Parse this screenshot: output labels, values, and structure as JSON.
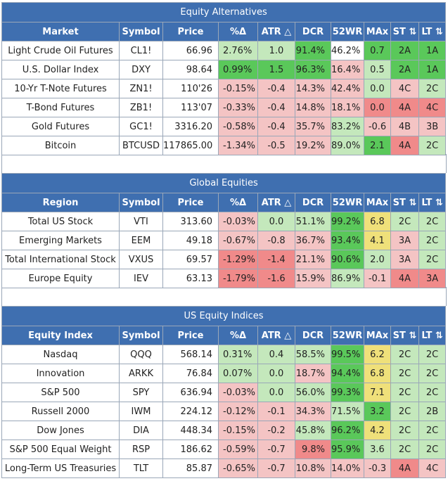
{
  "columns": [
    "Symbol",
    "Price",
    "%Δ",
    "ATR △",
    "DCR",
    "52WR",
    "MAx",
    "ST ⇅",
    "LT ⇅"
  ],
  "sections": [
    {
      "title": "Equity Alternatives",
      "first_col": "Market",
      "rows": [
        {
          "name": "Light Crude Oil Futures",
          "symbol": "CL1!",
          "price": "66.96",
          "pct": "2.76%",
          "atr": "1.0",
          "dcr": "91.4%",
          "wr": "46.2%",
          "max": "0.7",
          "st": "2A",
          "lt": "1A",
          "colors": [
            "lg",
            "lg",
            "dg",
            "w",
            "dg",
            "dg",
            "dg"
          ]
        },
        {
          "name": "U.S. Dollar Index",
          "symbol": "DXY",
          "price": "98.64",
          "pct": "0.99%",
          "atr": "1.5",
          "dcr": "96.3%",
          "wr": "16.4%",
          "max": "0.5",
          "st": "2A",
          "lt": "1A",
          "colors": [
            "dg",
            "dg",
            "dg",
            "lr",
            "lg",
            "dg",
            "dg"
          ]
        },
        {
          "name": "10-Yr T-Note Futures",
          "symbol": "ZN1!",
          "price": "110'26",
          "pct": "-0.15%",
          "atr": "-0.4",
          "dcr": "14.3%",
          "wr": "42.4%",
          "max": "0.0",
          "st": "4C",
          "lt": "2C",
          "colors": [
            "lr",
            "lr",
            "lr",
            "lr",
            "lg",
            "lr",
            "lg"
          ]
        },
        {
          "name": "T-Bond Futures",
          "symbol": "ZB1!",
          "price": "113'07",
          "pct": "-0.33%",
          "atr": "-0.4",
          "dcr": "14.8%",
          "wr": "18.1%",
          "max": "0.0",
          "st": "4A",
          "lt": "4C",
          "colors": [
            "lr",
            "lr",
            "lr",
            "lr",
            "r",
            "r",
            "r"
          ]
        },
        {
          "name": "Gold Futures",
          "symbol": "GC1!",
          "price": "3316.20",
          "pct": "-0.58%",
          "atr": "-0.4",
          "dcr": "35.7%",
          "wr": "83.2%",
          "max": "-0.6",
          "st": "4B",
          "lt": "3B",
          "colors": [
            "lr",
            "lr",
            "lr",
            "lg",
            "lr",
            "lr",
            "lr"
          ]
        },
        {
          "name": "Bitcoin",
          "symbol": "BTCUSD",
          "price": "117865.00",
          "pct": "-1.34%",
          "atr": "-0.5",
          "dcr": "19.2%",
          "wr": "89.0%",
          "max": "2.1",
          "st": "4A",
          "lt": "2C",
          "colors": [
            "lr",
            "lr",
            "lr",
            "lg",
            "dg",
            "r",
            "lg"
          ]
        }
      ]
    },
    {
      "title": "Global Equities",
      "first_col": "Region",
      "rows": [
        {
          "name": "Total US Stock",
          "symbol": "VTI",
          "price": "313.60",
          "pct": "-0.03%",
          "atr": "0.0",
          "dcr": "51.1%",
          "wr": "99.2%",
          "max": "6.8",
          "st": "2C",
          "lt": "2C",
          "colors": [
            "lr",
            "lg",
            "lg",
            "dg",
            "y",
            "lg",
            "lg"
          ]
        },
        {
          "name": "Emerging Markets",
          "symbol": "EEM",
          "price": "49.18",
          "pct": "-0.67%",
          "atr": "-0.8",
          "dcr": "36.7%",
          "wr": "93.4%",
          "max": "4.1",
          "st": "3A",
          "lt": "2C",
          "colors": [
            "lr",
            "lr",
            "lr",
            "dg",
            "y",
            "lr",
            "lg"
          ]
        },
        {
          "name": "Total International Stock",
          "symbol": "VXUS",
          "price": "69.57",
          "pct": "-1.29%",
          "atr": "-1.4",
          "dcr": "21.1%",
          "wr": "90.6%",
          "max": "2.0",
          "st": "3A",
          "lt": "2C",
          "colors": [
            "r",
            "r",
            "lr",
            "dg",
            "lg",
            "lr",
            "lg"
          ]
        },
        {
          "name": "Europe Equity",
          "symbol": "IEV",
          "price": "63.13",
          "pct": "-1.79%",
          "atr": "-1.6",
          "dcr": "15.9%",
          "wr": "86.9%",
          "max": "-0.1",
          "st": "4A",
          "lt": "3A",
          "colors": [
            "r",
            "r",
            "lr",
            "lg",
            "lr",
            "r",
            "r"
          ]
        }
      ]
    },
    {
      "title": "US Equity Indices",
      "first_col": "Equity Index",
      "rows": [
        {
          "name": "Nasdaq",
          "symbol": "QQQ",
          "price": "568.14",
          "pct": "0.31%",
          "atr": "0.4",
          "dcr": "58.5%",
          "wr": "99.5%",
          "max": "6.2",
          "st": "2C",
          "lt": "2C",
          "colors": [
            "lg",
            "lg",
            "lg",
            "dg",
            "y",
            "lg",
            "lg"
          ]
        },
        {
          "name": "Innovation",
          "symbol": "ARKK",
          "price": "76.84",
          "pct": "0.07%",
          "atr": "0.0",
          "dcr": "18.7%",
          "wr": "94.4%",
          "max": "6.8",
          "st": "2C",
          "lt": "2C",
          "colors": [
            "lg",
            "lg",
            "lr",
            "dg",
            "y",
            "lg",
            "lg"
          ]
        },
        {
          "name": "S&P 500",
          "symbol": "SPY",
          "price": "636.94",
          "pct": "-0.03%",
          "atr": "0.0",
          "dcr": "56.0%",
          "wr": "99.3%",
          "max": "7.1",
          "st": "2C",
          "lt": "2C",
          "colors": [
            "lr",
            "lg",
            "lg",
            "dg",
            "y",
            "lg",
            "lg"
          ]
        },
        {
          "name": "Russell 2000",
          "symbol": "IWM",
          "price": "224.12",
          "pct": "-0.12%",
          "atr": "-0.1",
          "dcr": "34.3%",
          "wr": "71.5%",
          "max": "3.2",
          "st": "2C",
          "lt": "2B",
          "colors": [
            "lr",
            "lr",
            "lr",
            "lg",
            "dg",
            "lg",
            "lg"
          ]
        },
        {
          "name": "Dow Jones",
          "symbol": "DIA",
          "price": "448.34",
          "pct": "-0.15%",
          "atr": "-0.2",
          "dcr": "45.8%",
          "wr": "96.2%",
          "max": "4.2",
          "st": "2C",
          "lt": "2C",
          "colors": [
            "lr",
            "lr",
            "lg",
            "dg",
            "y",
            "lg",
            "lg"
          ]
        },
        {
          "name": "S&P 500 Equal Weight",
          "symbol": "RSP",
          "price": "186.62",
          "pct": "-0.59%",
          "atr": "-0.7",
          "dcr": "9.8%",
          "wr": "95.9%",
          "max": "3.6",
          "st": "2C",
          "lt": "2C",
          "colors": [
            "lr",
            "lr",
            "r",
            "dg",
            "lg",
            "lg",
            "lg"
          ]
        },
        {
          "name": "Long-Term US Treasuries",
          "symbol": "TLT",
          "price": "85.87",
          "pct": "-0.65%",
          "atr": "-0.7",
          "dcr": "10.8%",
          "wr": "14.0%",
          "max": "-0.3",
          "st": "4A",
          "lt": "4C",
          "colors": [
            "lr",
            "lr",
            "lr",
            "lr",
            "lr",
            "r",
            "lr"
          ]
        }
      ]
    }
  ]
}
